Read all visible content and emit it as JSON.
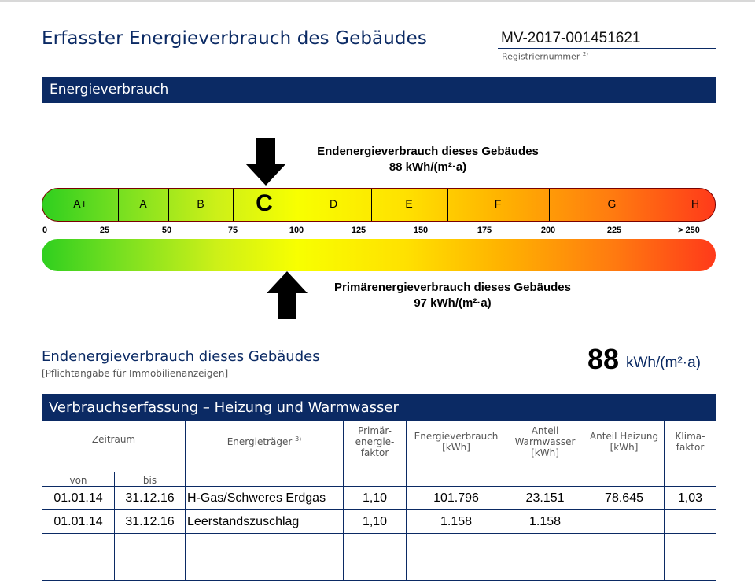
{
  "header": {
    "title": "Erfasster Energieverbrauch des Gebäudes",
    "registration_number": "MV-2017-001451621",
    "registration_label": "Registriernummer",
    "registration_footnote": "2)"
  },
  "section": {
    "title": "Energieverbrauch"
  },
  "scale": {
    "classes": [
      "A+",
      "A",
      "B",
      "C",
      "D",
      "E",
      "F",
      "G",
      "H"
    ],
    "active_class": "C",
    "ticks": [
      "0",
      "25",
      "50",
      "75",
      "100",
      "125",
      "150",
      "175",
      "200",
      "225",
      "> 250"
    ],
    "endenergie_label": "Endenergieverbrauch dieses Gebäudes",
    "endenergie_value": "88 kWh/(m²·a)",
    "primaerenergie_label": "Primärenergieverbrauch dieses Gebäudes",
    "primaerenergie_value": "97 kWh/(m²·a)",
    "endenergie_kwh": 88,
    "primaerenergie_kwh": 97,
    "colors": {
      "start": "#2fcf1f",
      "mid": "#f8ff00",
      "end": "#ff3a1a",
      "brand": "#0b2a64"
    }
  },
  "summary": {
    "title": "Endenergieverbrauch dieses Gebäudes",
    "note": "[Pflichtangabe für Immobilienanzeigen]",
    "value": "88",
    "unit": "kWh/(m²·a)"
  },
  "table": {
    "title": "Verbrauchserfassung – Heizung und Warmwasser",
    "headers": {
      "zeitraum": "Zeitraum",
      "von": "von",
      "bis": "bis",
      "energietraeger": "Energieträger",
      "energietraeger_footnote": "3)",
      "primaer": "Primär-energie-faktor",
      "verbrauch": "Energieverbrauch [kWh]",
      "warmwasser": "Anteil Warmwasser [kWh]",
      "heizung": "Anteil Heizung [kWh]",
      "klima": "Klima-faktor"
    },
    "rows": [
      {
        "von": "01.01.14",
        "bis": "31.12.16",
        "traeger": "H-Gas/Schweres Erdgas",
        "faktor": "1,10",
        "verbrauch": "101.796",
        "warmwasser": "23.151",
        "heizung": "78.645",
        "klima": "1,03"
      },
      {
        "von": "01.01.14",
        "bis": "31.12.16",
        "traeger": "Leerstandszuschlag",
        "faktor": "1,10",
        "verbrauch": "1.158",
        "warmwasser": "1.158",
        "heizung": "",
        "klima": ""
      },
      {
        "von": "",
        "bis": "",
        "traeger": "",
        "faktor": "",
        "verbrauch": "",
        "warmwasser": "",
        "heizung": "",
        "klima": ""
      },
      {
        "von": "",
        "bis": "",
        "traeger": "",
        "faktor": "",
        "verbrauch": "",
        "warmwasser": "",
        "heizung": "",
        "klima": ""
      }
    ]
  }
}
